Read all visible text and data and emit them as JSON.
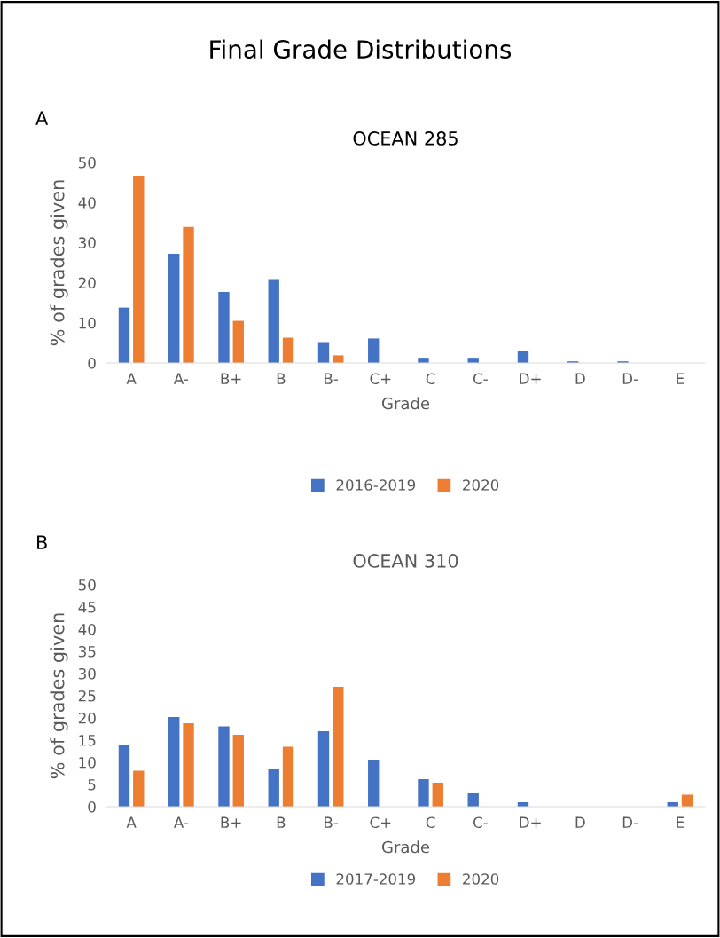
{
  "chart_data": [
    {
      "type": "bar",
      "title": "OCEAN 285",
      "xlabel": "Grade",
      "ylabel": "% of grades given",
      "annotations": [
        "Final Grade Distributions",
        "A"
      ],
      "categories": [
        "A",
        "A-",
        "B+",
        "B",
        "B-",
        "C+",
        "C",
        "C-",
        "D+",
        "D",
        "D-",
        "E"
      ],
      "series": [
        {
          "name": "2016-2019",
          "color": "#4472c4",
          "values": [
            13.8,
            27.2,
            17.7,
            20.9,
            5.2,
            6.1,
            1.3,
            1.3,
            2.9,
            0.4,
            0.4,
            0
          ]
        },
        {
          "name": "2020",
          "color": "#ed7d31",
          "values": [
            46.7,
            33.9,
            10.5,
            6.3,
            1.9,
            0,
            0,
            0,
            0,
            0,
            0,
            0
          ]
        }
      ],
      "ylim": [
        0,
        50
      ],
      "yticks": [
        0,
        10,
        20,
        30,
        40,
        50
      ],
      "grid": false,
      "legend": "bottom"
    },
    {
      "type": "bar",
      "title": "OCEAN 310",
      "xlabel": "Grade",
      "ylabel": "% of grades given",
      "annotations": [
        "B"
      ],
      "categories": [
        "A",
        "A-",
        "B+",
        "B",
        "B-",
        "C+",
        "C",
        "C-",
        "D+",
        "D",
        "D-",
        "E"
      ],
      "series": [
        {
          "name": "2017-2019",
          "color": "#4472c4",
          "values": [
            13.8,
            20.2,
            18.1,
            8.4,
            17.0,
            10.6,
            6.2,
            3.0,
            1.0,
            0,
            0,
            1.0
          ]
        },
        {
          "name": "2020",
          "color": "#ed7d31",
          "values": [
            8.1,
            18.8,
            16.2,
            13.5,
            27.0,
            0,
            5.4,
            0,
            0,
            0,
            0,
            2.7
          ]
        }
      ],
      "ylim": [
        0,
        50
      ],
      "yticks": [
        0,
        5,
        10,
        15,
        20,
        25,
        30,
        35,
        40,
        45,
        50
      ],
      "grid": false,
      "legend": "bottom"
    }
  ]
}
